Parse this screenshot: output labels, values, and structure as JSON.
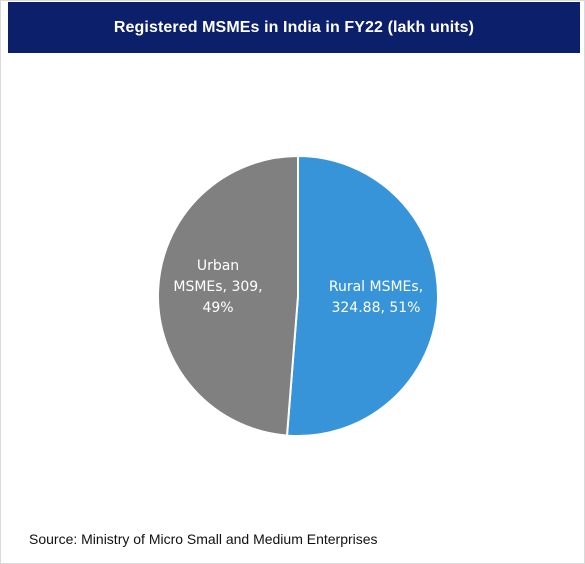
{
  "header": {
    "title": "Registered MSMEs in India in FY22 (lakh units)"
  },
  "chart_data": {
    "type": "pie",
    "title": "Registered MSMEs in India in FY22 (lakh units)",
    "unit": "lakh units",
    "slices": [
      {
        "name": "Rural MSMEs",
        "value": 324.88,
        "percent": 51,
        "color": "#3894d8",
        "label_lines": [
          "Rural MSMEs,",
          "324.88, 51%"
        ]
      },
      {
        "name": "Urban MSMEs",
        "value": 309,
        "percent": 49,
        "color": "#808080",
        "label_lines": [
          "Urban",
          "MSMEs, 309,",
          "49%"
        ]
      }
    ],
    "start_angle_deg": 0,
    "direction": "clockwise"
  },
  "footer": {
    "source": "Source: Ministry of Micro Small and Medium Enterprises"
  }
}
